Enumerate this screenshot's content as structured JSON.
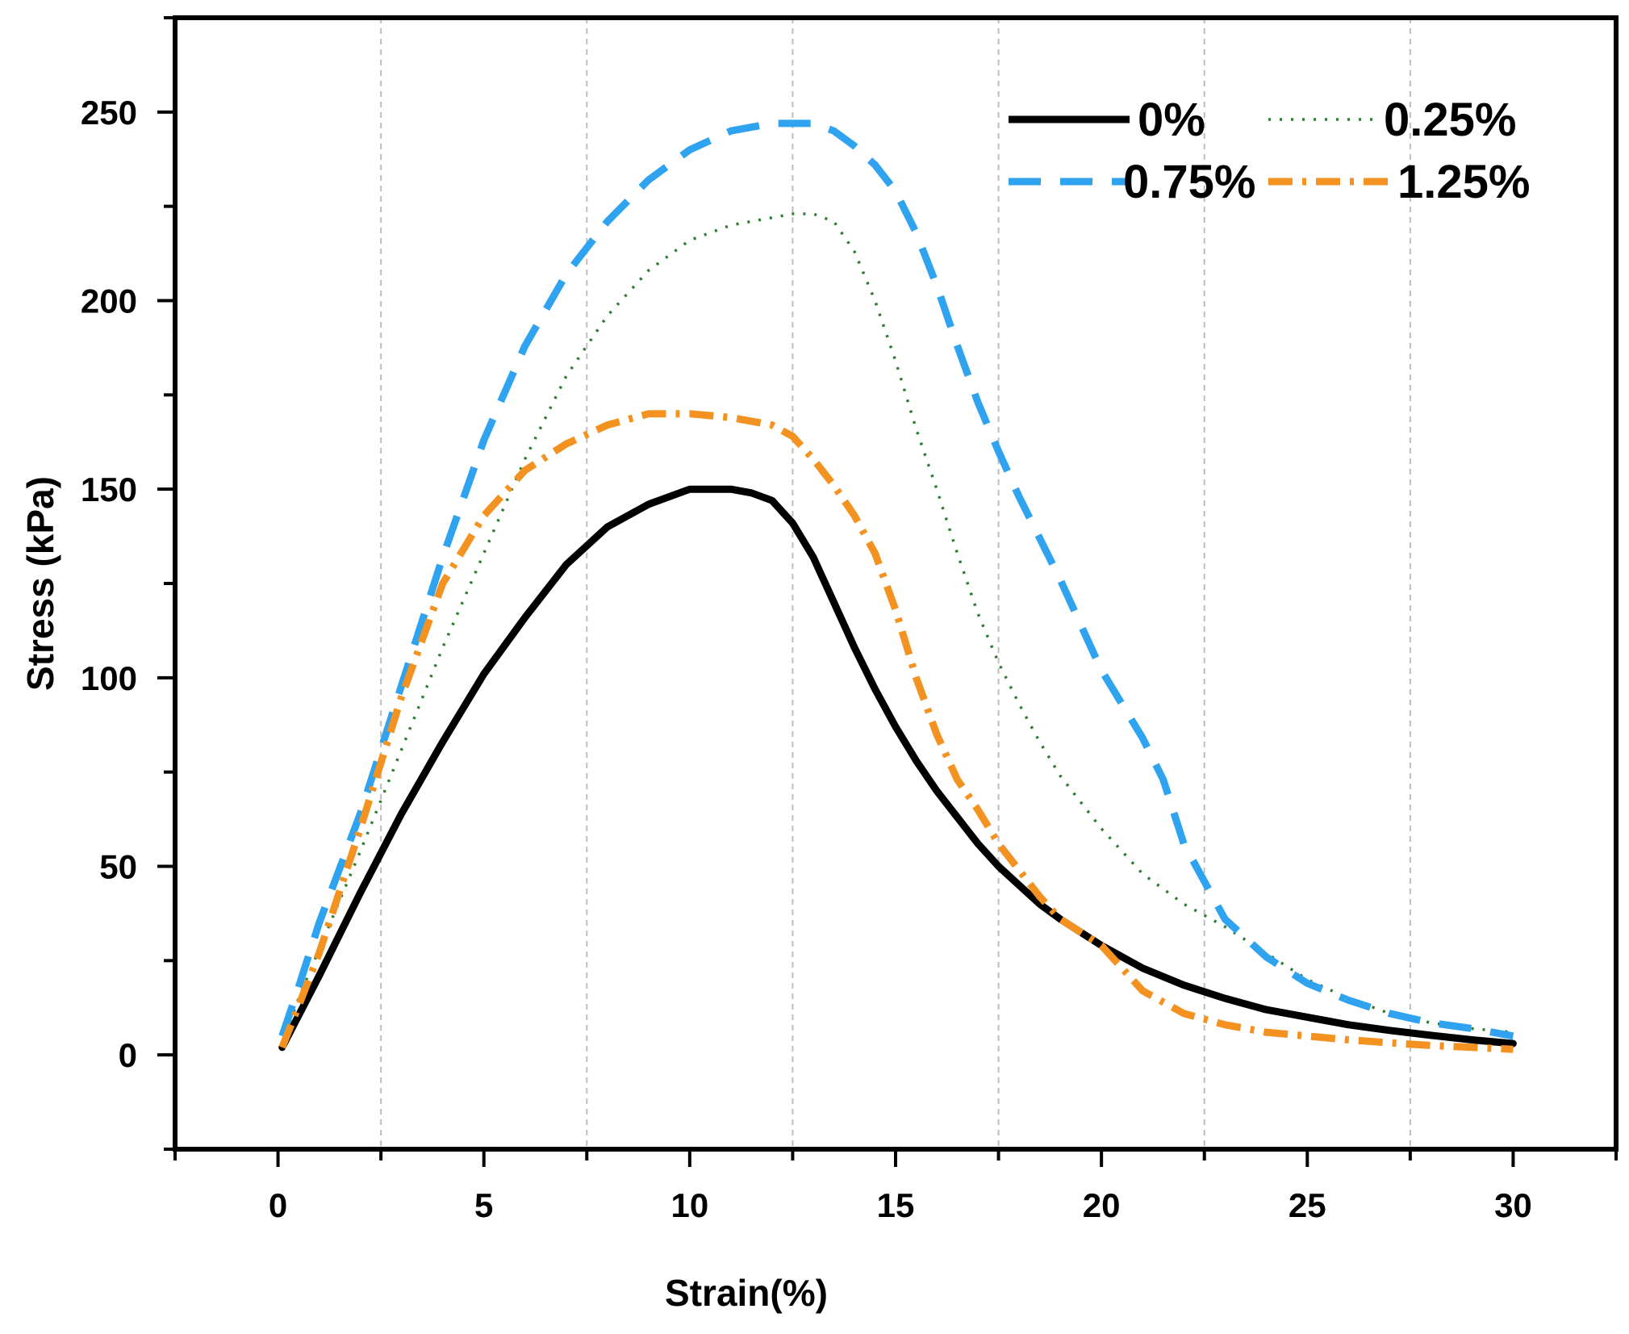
{
  "chart_data": {
    "type": "line",
    "title": "",
    "xlabel": "Strain(%)",
    "ylabel": "Stress (kPa)",
    "xlim": [
      -2.5,
      32.5
    ],
    "ylim": [
      -25,
      275
    ],
    "xticks": [
      0,
      5,
      10,
      15,
      20,
      25,
      30
    ],
    "xtick_labels": [
      "0",
      "5",
      "10",
      "15",
      "20",
      "25",
      "30"
    ],
    "yticks": [
      0,
      50,
      100,
      150,
      200,
      250
    ],
    "ytick_labels": [
      "0",
      "50",
      "100",
      "150",
      "200",
      "250"
    ],
    "vertical_gridlines": [
      2.5,
      7.5,
      12.5,
      17.5,
      22.5,
      27.5
    ],
    "grid": "vertical dashed at minor x ticks",
    "legend_position": "top-right",
    "series": [
      {
        "name": "0%",
        "color": "#000000",
        "style": "solid",
        "x": [
          0.1,
          1,
          2,
          3,
          4,
          5,
          6,
          7,
          8,
          9,
          10,
          11,
          11.5,
          12,
          12.5,
          13,
          13.5,
          14,
          14.5,
          15,
          15.5,
          16,
          16.5,
          17,
          17.5,
          18,
          18.5,
          19,
          20,
          21,
          22,
          23,
          24,
          25,
          26,
          27,
          28,
          29,
          30
        ],
        "y": [
          2,
          21,
          43,
          64,
          83,
          101,
          116,
          130,
          140,
          146,
          150,
          150,
          149,
          147,
          141,
          132,
          120,
          108,
          97,
          87,
          78,
          70,
          63,
          56,
          50,
          45,
          40,
          36,
          29,
          23,
          18.5,
          15,
          12,
          10,
          8,
          6.5,
          5.2,
          4,
          3
        ]
      },
      {
        "name": "0.25%",
        "color": "#2e7d32",
        "style": "dotted",
        "x": [
          0.1,
          0.5,
          1,
          2,
          3,
          4,
          5,
          6,
          7,
          8,
          9,
          10,
          11,
          12,
          12.5,
          13,
          13.5,
          14,
          14.5,
          15,
          15.5,
          16,
          16.5,
          17,
          17.5,
          18,
          18.5,
          19,
          19.5,
          20,
          21,
          22,
          23,
          24,
          25,
          26,
          27,
          28,
          29,
          30
        ],
        "y": [
          3,
          15,
          28,
          54,
          81,
          108,
          133,
          158,
          180,
          196,
          208,
          216,
          220,
          222,
          223,
          223,
          221,
          213,
          200,
          184,
          166,
          150,
          133,
          117,
          104,
          93,
          83,
          74,
          67,
          60,
          48,
          40,
          34,
          27,
          20,
          15,
          11,
          8.5,
          7,
          6
        ]
      },
      {
        "name": "0.75%",
        "color": "#2fa3ef",
        "style": "dashed",
        "x": [
          0.1,
          0.5,
          1,
          2,
          3,
          4,
          5,
          6,
          7,
          8,
          9,
          10,
          11,
          12,
          12.5,
          13,
          13.5,
          14,
          14.5,
          15,
          15.5,
          16,
          16.5,
          17,
          17.5,
          18,
          19,
          20,
          20.5,
          21,
          21.5,
          22,
          23,
          24,
          25,
          26,
          27,
          28,
          29,
          30
        ],
        "y": [
          5,
          18,
          35,
          64,
          98,
          132,
          163,
          188,
          207,
          221,
          232,
          240,
          245,
          247,
          247,
          247,
          245,
          241,
          236,
          229,
          218,
          204,
          188,
          173,
          160,
          148,
          126,
          102,
          93,
          84,
          73,
          56,
          36,
          26,
          19,
          14.5,
          11,
          8.5,
          7,
          5
        ]
      },
      {
        "name": "1.25%",
        "color": "#f39220",
        "style": "dashdot",
        "x": [
          0.1,
          0.5,
          1,
          2,
          3,
          4,
          5,
          6,
          7,
          8,
          9,
          10,
          11,
          12,
          12.5,
          13,
          13.5,
          14,
          14.5,
          15,
          15.5,
          16,
          16.5,
          17,
          17.5,
          18,
          18.5,
          19,
          20,
          20.5,
          21,
          22,
          23,
          24,
          25,
          26,
          27,
          28,
          29,
          30
        ],
        "y": [
          2,
          13,
          27,
          60,
          95,
          125,
          143,
          155,
          162,
          167,
          170,
          170,
          169,
          167,
          164,
          158,
          151,
          143,
          133,
          118,
          100,
          85,
          73,
          65,
          56,
          49,
          42,
          36,
          29,
          23,
          17,
          11,
          8,
          6,
          5,
          4,
          3.2,
          2.5,
          2,
          1.5
        ]
      }
    ]
  }
}
